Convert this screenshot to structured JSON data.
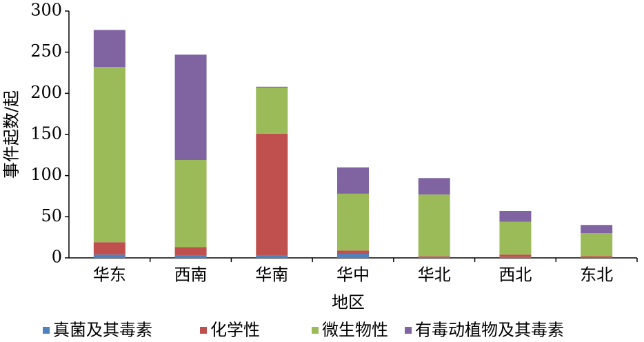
{
  "chart_data": {
    "type": "stacked_bar",
    "x_label": "地区",
    "y_label": "事件起数/起",
    "categories": [
      "华东",
      "西南",
      "华南",
      "华中",
      "华北",
      "西北",
      "东北"
    ],
    "series": [
      {
        "name": "真菌及其毒素",
        "color": "#4f81bd",
        "values": [
          4,
          3,
          3,
          5,
          1,
          1,
          0
        ]
      },
      {
        "name": "化学性",
        "color": "#c0504d",
        "values": [
          15,
          10,
          148,
          4,
          1,
          3,
          2
        ]
      },
      {
        "name": "微生物性",
        "color": "#9bbb59",
        "values": [
          213,
          106,
          56,
          69,
          75,
          40,
          28
        ]
      },
      {
        "name": "有毒动植物及其毒素",
        "color": "#8064a2",
        "values": [
          45,
          128,
          1,
          32,
          20,
          13,
          10
        ]
      }
    ],
    "ylim": [
      0,
      300
    ],
    "yticks": [
      0,
      50,
      100,
      150,
      200,
      250,
      300
    ],
    "grid": false,
    "legend": "bottom"
  }
}
